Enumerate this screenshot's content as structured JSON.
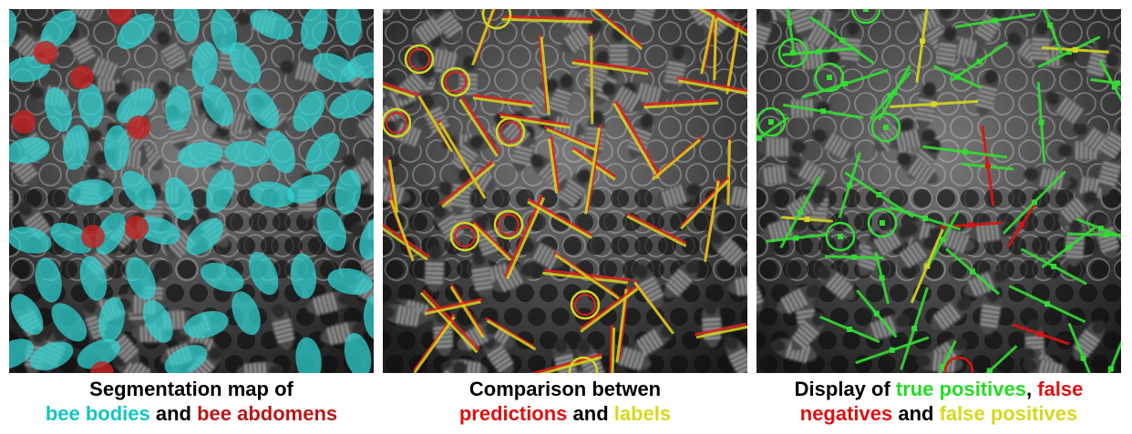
{
  "panels": [
    {
      "id": "segmentation",
      "caption": [
        [
          {
            "text": "Segmentation map of",
            "color": "#000000"
          }
        ],
        [
          {
            "text": "bee bodies",
            "color": "#13c5c5"
          },
          {
            "text": " and ",
            "color": "#000000"
          },
          {
            "text": "bee abdomens",
            "color": "#b81717"
          }
        ]
      ]
    },
    {
      "id": "comparison",
      "caption": [
        [
          {
            "text": "Comparison betwen",
            "color": "#000000"
          }
        ],
        [
          {
            "text": "predictions",
            "color": "#e01010"
          },
          {
            "text": " and ",
            "color": "#000000"
          },
          {
            "text": "labels",
            "color": "#d8d81c"
          }
        ]
      ]
    },
    {
      "id": "evaluation",
      "caption": [
        [
          {
            "text": "Display of ",
            "color": "#000000"
          },
          {
            "text": "true positives",
            "color": "#22dd22"
          },
          {
            "text": ", ",
            "color": "#000000"
          },
          {
            "text": "false",
            "color": "#dd1111"
          }
        ],
        [
          {
            "text": "negatives",
            "color": "#dd1111"
          },
          {
            "text": " and ",
            "color": "#000000"
          },
          {
            "text": "false positives",
            "color": "#d8d81c"
          }
        ]
      ]
    }
  ],
  "colors": {
    "body": "#2fd6d6",
    "abdomen": "#c42222",
    "prediction": "#e02020",
    "label": "#d6d61e",
    "true_positive": "#33dd33",
    "false_negative": "#dd1111",
    "false_positive": "#d6d61e"
  }
}
